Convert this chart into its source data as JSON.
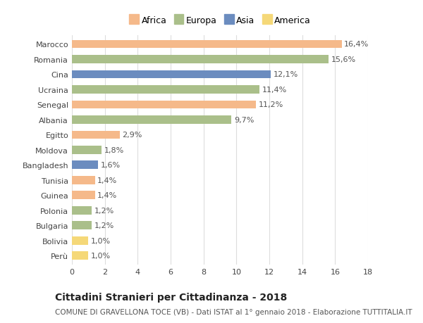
{
  "categories": [
    "Marocco",
    "Romania",
    "Cina",
    "Ucraina",
    "Senegal",
    "Albania",
    "Egitto",
    "Moldova",
    "Bangladesh",
    "Tunisia",
    "Guinea",
    "Polonia",
    "Bulgaria",
    "Bolivia",
    "Perù"
  ],
  "values": [
    16.4,
    15.6,
    12.1,
    11.4,
    11.2,
    9.7,
    2.9,
    1.8,
    1.6,
    1.4,
    1.4,
    1.2,
    1.2,
    1.0,
    1.0
  ],
  "labels": [
    "16,4%",
    "15,6%",
    "12,1%",
    "11,4%",
    "11,2%",
    "9,7%",
    "2,9%",
    "1,8%",
    "1,6%",
    "1,4%",
    "1,4%",
    "1,2%",
    "1,2%",
    "1,0%",
    "1,0%"
  ],
  "colors": [
    "#F5B98A",
    "#AABF8A",
    "#6B8CBF",
    "#AABF8A",
    "#F5B98A",
    "#AABF8A",
    "#F5B98A",
    "#AABF8A",
    "#6B8CBF",
    "#F5B98A",
    "#F5B98A",
    "#AABF8A",
    "#AABF8A",
    "#F5D878",
    "#F5D878"
  ],
  "legend": [
    {
      "label": "Africa",
      "color": "#F5B98A"
    },
    {
      "label": "Europa",
      "color": "#AABF8A"
    },
    {
      "label": "Asia",
      "color": "#6B8CBF"
    },
    {
      "label": "America",
      "color": "#F5D878"
    }
  ],
  "xlim": [
    0,
    18
  ],
  "xticks": [
    0,
    2,
    4,
    6,
    8,
    10,
    12,
    14,
    16,
    18
  ],
  "title": "Cittadini Stranieri per Cittadinanza - 2018",
  "subtitle": "COMUNE DI GRAVELLONA TOCE (VB) - Dati ISTAT al 1° gennaio 2018 - Elaborazione TUTTITALIA.IT",
  "bg_color": "#ffffff",
  "grid_color": "#dddddd",
  "bar_height": 0.55,
  "title_fontsize": 10,
  "subtitle_fontsize": 7.5,
  "label_fontsize": 8,
  "tick_fontsize": 8,
  "legend_fontsize": 9
}
